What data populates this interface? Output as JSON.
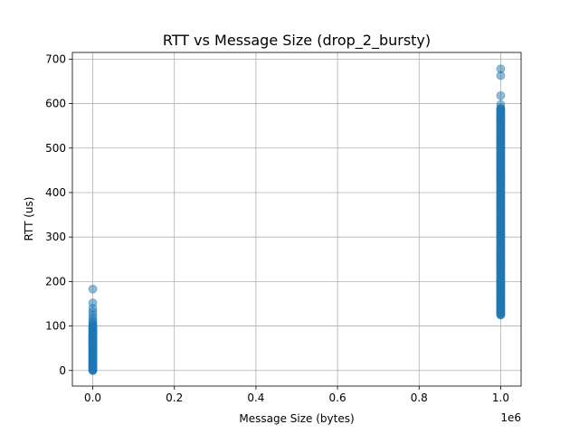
{
  "chart_data": {
    "type": "scatter",
    "title": "RTT vs Message Size (drop_2_bursty)",
    "xlabel": "Message Size (bytes)",
    "ylabel": "RTT (us)",
    "x_offset_label": "1e6",
    "xlim": [
      -50000,
      1050000
    ],
    "ylim": [
      -35,
      715
    ],
    "x_ticks": [
      0,
      200000,
      400000,
      600000,
      800000,
      1000000
    ],
    "x_tick_labels": [
      "0.0",
      "0.2",
      "0.4",
      "0.6",
      "0.8",
      "1.0"
    ],
    "y_ticks": [
      0,
      100,
      200,
      300,
      400,
      500,
      600,
      700
    ],
    "y_tick_labels": [
      "0",
      "100",
      "200",
      "300",
      "400",
      "500",
      "600",
      "700"
    ],
    "grid": true,
    "marker_color": "#1f77b4",
    "marker_alpha": 0.5,
    "series": [
      {
        "x_value": 64,
        "y_dense_range": [
          0,
          100
        ],
        "y_values": [
          0,
          2,
          5,
          8,
          12,
          15,
          18,
          22,
          25,
          28,
          32,
          35,
          38,
          42,
          45,
          48,
          52,
          55,
          58,
          62,
          65,
          68,
          72,
          75,
          78,
          82,
          85,
          88,
          92,
          95,
          98,
          102,
          105,
          108,
          112,
          118,
          125,
          132,
          140,
          152,
          183
        ]
      },
      {
        "x_value": 1000000,
        "y_dense_range": [
          125,
          590
        ],
        "y_values": [
          125,
          130,
          135,
          140,
          145,
          150,
          155,
          160,
          165,
          170,
          175,
          180,
          185,
          190,
          195,
          200,
          205,
          210,
          220,
          230,
          235,
          240,
          250,
          260,
          270,
          280,
          290,
          300,
          310,
          320,
          330,
          340,
          350,
          360,
          370,
          380,
          390,
          400,
          410,
          420,
          430,
          440,
          450,
          460,
          470,
          480,
          490,
          500,
          510,
          520,
          530,
          540,
          550,
          560,
          570,
          580,
          590,
          598,
          618,
          663,
          678
        ]
      }
    ]
  }
}
